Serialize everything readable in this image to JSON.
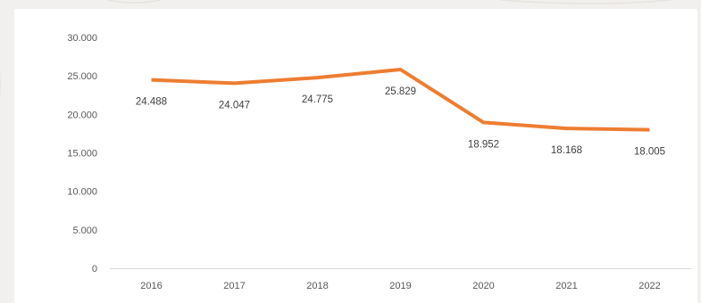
{
  "chart_data": {
    "type": "line",
    "categories": [
      "2016",
      "2017",
      "2018",
      "2019",
      "2020",
      "2021",
      "2022"
    ],
    "series": [
      {
        "values": [
          24488,
          24047,
          24775,
          25829,
          18952,
          18168,
          18005
        ],
        "labels": [
          "24.488",
          "24.047",
          "24.775",
          "25.829",
          "18.952",
          "18.168",
          "18.005"
        ],
        "color": "#ed7d31"
      }
    ],
    "yticks": [
      0,
      5000,
      10000,
      15000,
      20000,
      25000,
      30000
    ],
    "ytick_labels": [
      "0",
      "5.000",
      "10.000",
      "15.000",
      "20.000",
      "25.000",
      "30.000"
    ],
    "ylim": [
      0,
      30000
    ],
    "grid": false,
    "legend": "none",
    "title": "",
    "xlabel": "",
    "ylabel": ""
  },
  "colors": {
    "background": "#f2f0ee",
    "plot_background": "#ffffff",
    "line": "#ed7d31",
    "axis": "#d9d9d9",
    "tick_text": "#595959",
    "label_text": "#404040"
  }
}
